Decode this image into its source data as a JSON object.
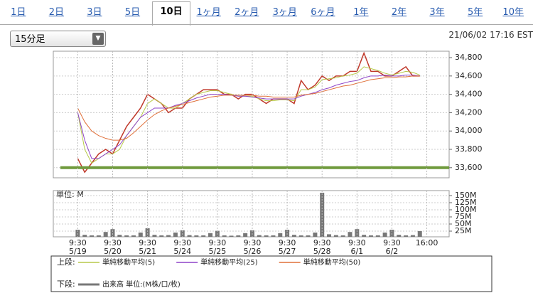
{
  "tabs": [
    "1日",
    "2日",
    "3日",
    "5日",
    "10日",
    "1ヶ月",
    "2ヶ月",
    "3ヶ月",
    "6ヶ月",
    "1年",
    "2年",
    "3年",
    "5年",
    "10年"
  ],
  "active_tab": 4,
  "dropdown": "15分足",
  "timestamp": "21/06/02 17:16 EST",
  "legend": {
    "upper": "上段:",
    "lower": "下段:"
  },
  "chart_data": [
    {
      "type": "line",
      "x": [
        0,
        1,
        2,
        3,
        4,
        5,
        6,
        7,
        8,
        9,
        10,
        11,
        12,
        13,
        14,
        15,
        16,
        17,
        18,
        19,
        20,
        21,
        22,
        23,
        24,
        25,
        26,
        27,
        28,
        29,
        30,
        31,
        32,
        33,
        34,
        35,
        36,
        37,
        38,
        39,
        40,
        41,
        42,
        43,
        44,
        45,
        46,
        47,
        48,
        49
      ],
      "xlim": [
        -3.5,
        53.2
      ],
      "ylim": [
        33490,
        34870
      ],
      "yticks": [
        {
          "value": 33600,
          "label": "33,600"
        },
        {
          "value": 33800,
          "label": "33,800"
        },
        {
          "value": 34000,
          "label": "34,000"
        },
        {
          "value": 34200,
          "label": "34,200"
        },
        {
          "value": 34400,
          "label": "34,400"
        },
        {
          "value": 34600,
          "label": "34,600"
        },
        {
          "value": 34800,
          "label": "34,800"
        }
      ],
      "grid": true,
      "hline": {
        "value": 33600,
        "color": "#6f9a3c"
      },
      "series": [
        {
          "color": "#c0392b",
          "values": [
            33700,
            33550,
            33650,
            33750,
            33800,
            33750,
            33900,
            34050,
            34150,
            34250,
            34400,
            34350,
            34300,
            34200,
            34250,
            34250,
            34350,
            34400,
            34450,
            34450,
            34450,
            34400,
            34400,
            34350,
            34400,
            34400,
            34350,
            34300,
            34350,
            34350,
            34350,
            34300,
            34550,
            34450,
            34500,
            34600,
            34550,
            34600,
            34600,
            34650,
            34650,
            34850,
            34650,
            34650,
            34600,
            34600,
            34650,
            34700,
            34600,
            34600
          ]
        },
        {
          "name": "単純移動平均(5)",
          "color": "#b7c94a",
          "values": [
            34200,
            33800,
            33650,
            33700,
            33750,
            33750,
            33800,
            33950,
            34050,
            34150,
            34300,
            34350,
            34300,
            34250,
            34250,
            34300,
            34350,
            34400,
            34420,
            34440,
            34440,
            34420,
            34400,
            34380,
            34380,
            34380,
            34350,
            34330,
            34330,
            34340,
            34340,
            34330,
            34450,
            34450,
            34480,
            34560,
            34570,
            34580,
            34600,
            34610,
            34630,
            34700,
            34680,
            34660,
            34630,
            34610,
            34630,
            34650,
            34640,
            34610
          ]
        },
        {
          "name": "単純移動平均(25)",
          "color": "#8e44c8",
          "values": [
            34200,
            33900,
            33700,
            33700,
            33750,
            33800,
            33850,
            33950,
            34050,
            34150,
            34200,
            34250,
            34250,
            34250,
            34280,
            34300,
            34330,
            34360,
            34380,
            34400,
            34400,
            34400,
            34390,
            34380,
            34380,
            34370,
            34360,
            34350,
            34350,
            34350,
            34350,
            34350,
            34380,
            34400,
            34420,
            34450,
            34470,
            34500,
            34520,
            34540,
            34550,
            34580,
            34600,
            34600,
            34610,
            34600,
            34600,
            34610,
            34610,
            34600
          ]
        },
        {
          "name": "単純移動平均(50)",
          "color": "#e0703a",
          "values": [
            34250,
            34100,
            34000,
            33950,
            33920,
            33900,
            33900,
            33920,
            33980,
            34050,
            34120,
            34180,
            34220,
            34250,
            34270,
            34290,
            34310,
            34330,
            34350,
            34370,
            34380,
            34390,
            34390,
            34390,
            34390,
            34390,
            34380,
            34380,
            34370,
            34370,
            34370,
            34370,
            34390,
            34400,
            34410,
            34430,
            34450,
            34470,
            34490,
            34500,
            34520,
            34540,
            34560,
            34570,
            34580,
            34580,
            34590,
            34590,
            34600,
            34600
          ]
        }
      ]
    },
    {
      "type": "bar",
      "ylabel": "単位: M",
      "x": [
        0,
        1,
        2,
        3,
        4,
        5,
        6,
        7,
        8,
        9,
        10,
        11,
        12,
        13,
        14,
        15,
        16,
        17,
        18,
        19,
        20,
        21,
        22,
        23,
        24,
        25,
        26,
        27,
        28,
        29,
        30,
        31,
        32,
        33,
        34,
        35,
        36,
        37,
        38,
        39,
        40,
        41,
        42,
        43,
        44,
        45,
        46,
        47,
        48,
        49
      ],
      "xlim": [
        -3.5,
        53.2
      ],
      "xticks": [
        {
          "value": 0,
          "label": "9:30\n5/19"
        },
        {
          "value": 5,
          "label": "9:30\n5/20"
        },
        {
          "value": 10,
          "label": "9:30\n5/21"
        },
        {
          "value": 15,
          "label": "9:30\n5/24"
        },
        {
          "value": 20,
          "label": "9:30\n5/25"
        },
        {
          "value": 25,
          "label": "9:30\n5/26"
        },
        {
          "value": 30,
          "label": "9:30\n5/27"
        },
        {
          "value": 35,
          "label": "9:30\n5/28"
        },
        {
          "value": 40,
          "label": "9:30\n6/1"
        },
        {
          "value": 45,
          "label": "9:30\n6/2"
        },
        {
          "value": 50,
          "label": "16:00"
        }
      ],
      "ylim": [
        5,
        167.5
      ],
      "yticks": [
        {
          "value": 25,
          "label": "25M"
        },
        {
          "value": 50,
          "label": "50M"
        },
        {
          "value": 75,
          "label": "75M"
        },
        {
          "value": 100,
          "label": "100M"
        },
        {
          "value": 125,
          "label": "125M"
        },
        {
          "value": 150,
          "label": "150M"
        }
      ],
      "name": "出来高 単位:(M株/口/枚)",
      "color": "#777777",
      "values": [
        30,
        12,
        10,
        10,
        22,
        32,
        12,
        10,
        10,
        20,
        35,
        12,
        10,
        11,
        20,
        28,
        11,
        10,
        10,
        18,
        26,
        10,
        9,
        10,
        18,
        28,
        11,
        10,
        10,
        18,
        30,
        12,
        10,
        10,
        20,
        160,
        14,
        11,
        10,
        22,
        32,
        12,
        10,
        10,
        20,
        30,
        12,
        10,
        11,
        25
      ]
    }
  ]
}
